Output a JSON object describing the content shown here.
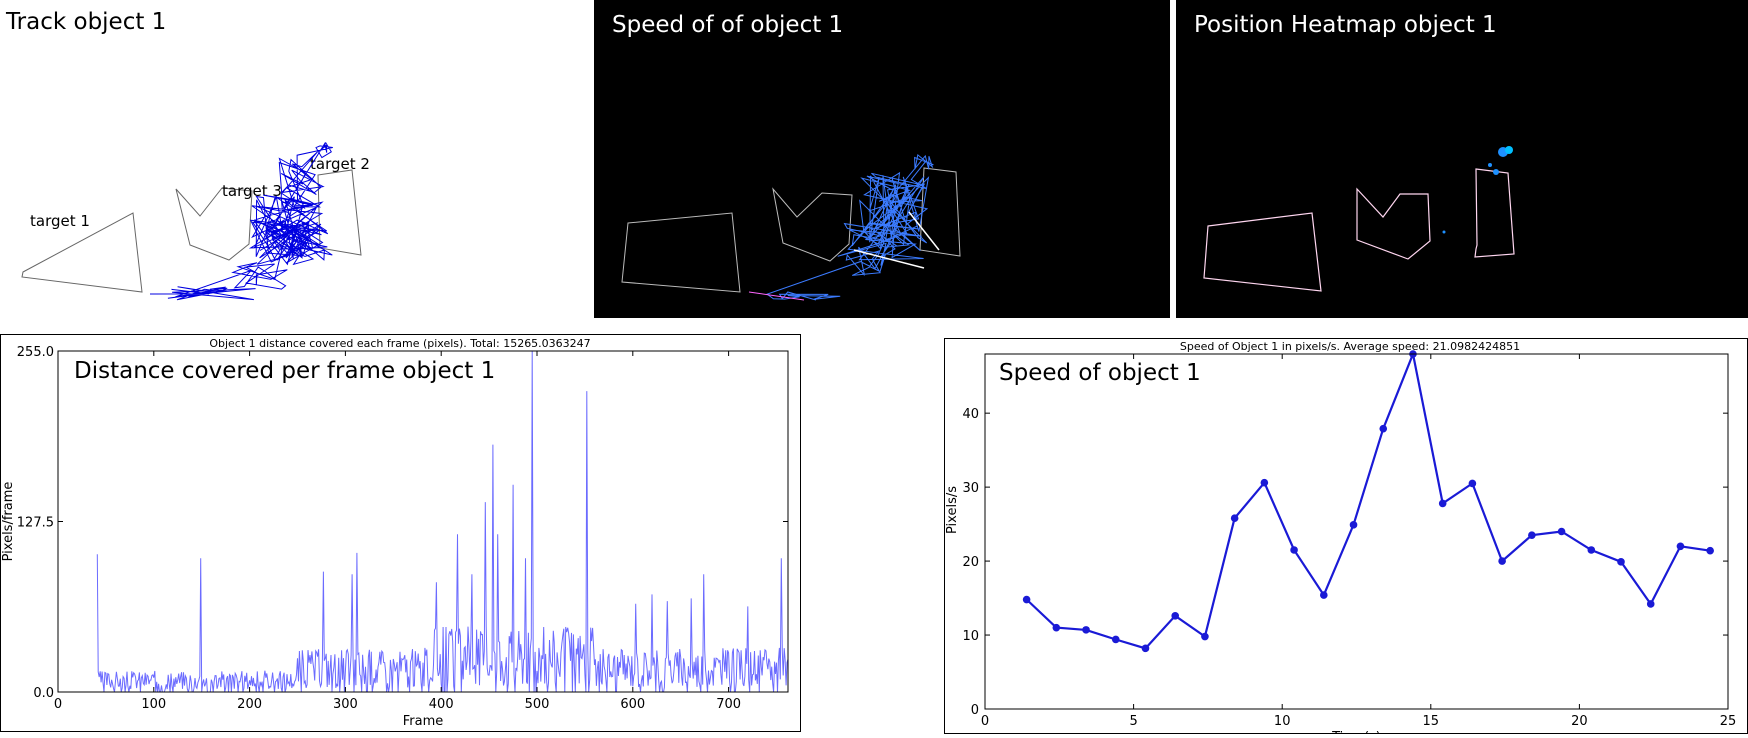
{
  "panels": {
    "track": {
      "title": "Track object 1",
      "targets": [
        "target 1",
        "target 2",
        "target 3"
      ]
    },
    "speed_image": {
      "title": "Speed of of object 1"
    },
    "heatmap": {
      "title": "Position Heatmap object 1"
    }
  },
  "chart_data": [
    {
      "type": "line",
      "title": "Object 1 distance covered each frame (pixels). Total: 15265.0363247",
      "annotation": "Distance covered per frame object 1",
      "xlabel": "Frame",
      "ylabel": "Pixels/frame",
      "xlim": [
        0,
        762
      ],
      "ylim": [
        0,
        255
      ],
      "xticks": [
        "0",
        "100",
        "200",
        "300",
        "400",
        "500",
        "600",
        "700"
      ],
      "yticks": [
        "0.0",
        "127.5",
        "255.0"
      ],
      "color": "#6b6bff",
      "x_start": 41,
      "spikes": [
        {
          "x": 41,
          "y": 103
        },
        {
          "x": 149,
          "y": 100
        },
        {
          "x": 277,
          "y": 90
        },
        {
          "x": 307,
          "y": 88
        },
        {
          "x": 312,
          "y": 104
        },
        {
          "x": 395,
          "y": 82
        },
        {
          "x": 417,
          "y": 118
        },
        {
          "x": 432,
          "y": 88
        },
        {
          "x": 446,
          "y": 142
        },
        {
          "x": 454,
          "y": 185
        },
        {
          "x": 459,
          "y": 118
        },
        {
          "x": 475,
          "y": 155
        },
        {
          "x": 488,
          "y": 100
        },
        {
          "x": 495,
          "y": 255
        },
        {
          "x": 552,
          "y": 225
        },
        {
          "x": 603,
          "y": 66
        },
        {
          "x": 620,
          "y": 73
        },
        {
          "x": 636,
          "y": 68
        },
        {
          "x": 661,
          "y": 70
        },
        {
          "x": 674,
          "y": 88
        },
        {
          "x": 720,
          "y": 64
        },
        {
          "x": 755,
          "y": 100
        }
      ]
    },
    {
      "type": "line",
      "title": "Speed of Object 1 in pixels/s. Average speed: 21.0982424851",
      "annotation": "Speed of object 1",
      "xlabel": "Time(s)",
      "ylabel": "Pixels/s",
      "xlim": [
        0,
        25
      ],
      "ylim": [
        0,
        48
      ],
      "xticks": [
        0,
        5,
        10,
        15,
        20,
        25
      ],
      "yticks": [
        0,
        10,
        20,
        30,
        40
      ],
      "color": "#1a1ad6",
      "x": [
        1.4,
        2.4,
        3.4,
        4.4,
        5.4,
        6.4,
        7.4,
        8.4,
        9.4,
        10.4,
        11.4,
        12.4,
        13.4,
        14.4,
        15.4,
        16.4,
        17.4,
        18.4,
        19.4,
        20.4,
        21.4,
        22.4,
        23.4,
        24.4
      ],
      "y": [
        14.8,
        11.0,
        10.7,
        9.4,
        8.2,
        12.6,
        9.8,
        25.8,
        30.6,
        21.5,
        15.4,
        24.9,
        37.9,
        48.0,
        27.8,
        30.5,
        20.0,
        23.5,
        24.0,
        21.5,
        19.9,
        14.2,
        22.0,
        21.4
      ]
    }
  ]
}
